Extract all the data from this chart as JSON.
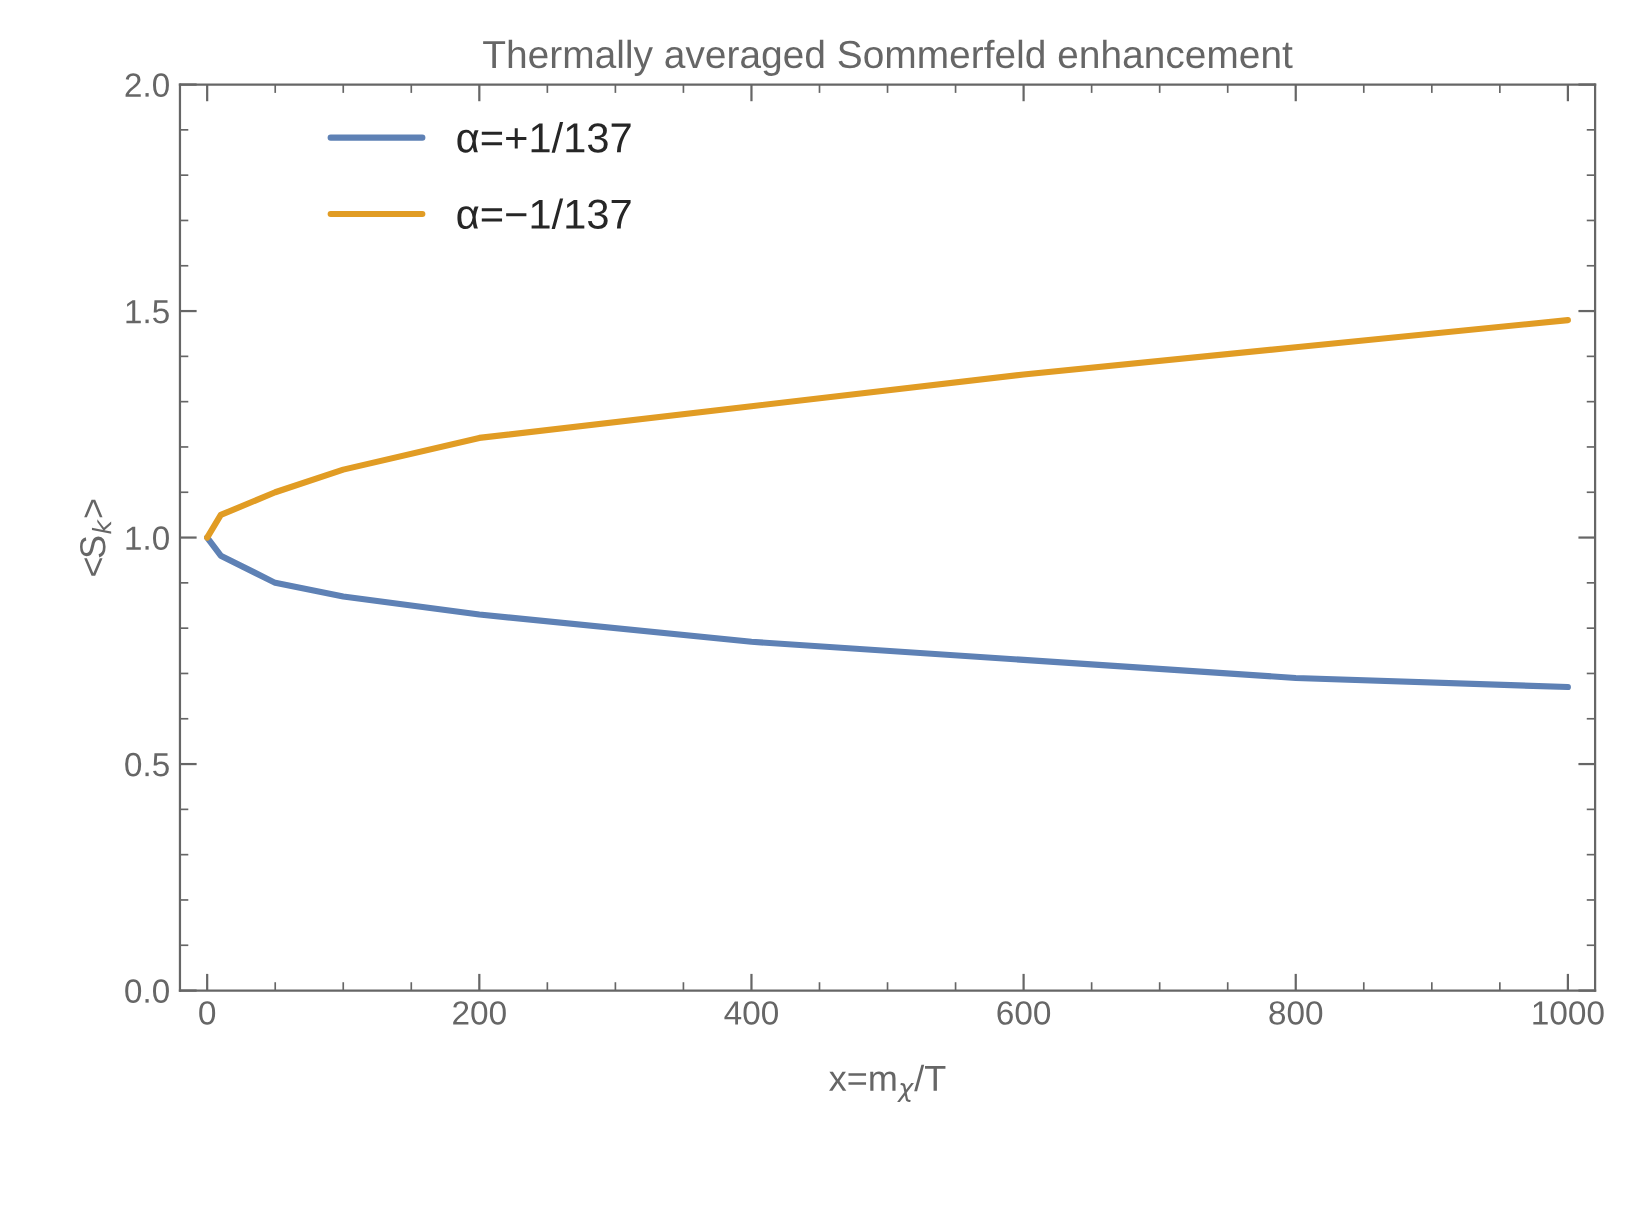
{
  "chart_data": {
    "type": "line",
    "title": "Thermally averaged Sommerfeld enhancement",
    "xlabel": "x=m$_{χ}$/T",
    "ylabel": "<S$_{k}$>",
    "xlim": [
      -20,
      1020
    ],
    "ylim": [
      0,
      2
    ],
    "xticks": [
      0,
      200,
      400,
      600,
      800,
      1000
    ],
    "yticks": [
      {
        "value": 0,
        "label": "0.0"
      },
      {
        "value": 0.5,
        "label": "0.5"
      },
      {
        "value": 1,
        "label": "1.0"
      },
      {
        "value": 1.5,
        "label": "1.5"
      },
      {
        "value": 2,
        "label": "2.0"
      }
    ],
    "grid": false,
    "legend": "top left",
    "marker": "none",
    "line_style": "solid",
    "series": [
      {
        "name": "α=+1/137",
        "color": "#5e81b5",
        "x": [
          0,
          10,
          50,
          100,
          200,
          400,
          600,
          800,
          1000
        ],
        "values": [
          1.0,
          0.96,
          0.9,
          0.87,
          0.83,
          0.77,
          0.73,
          0.69,
          0.67
        ]
      },
      {
        "name": "α=−1/137",
        "color": "#e19c24",
        "x": [
          0,
          10,
          50,
          100,
          200,
          400,
          600,
          800,
          1000
        ],
        "values": [
          1.0,
          1.05,
          1.1,
          1.15,
          1.22,
          1.29,
          1.36,
          1.42,
          1.48
        ]
      }
    ]
  }
}
